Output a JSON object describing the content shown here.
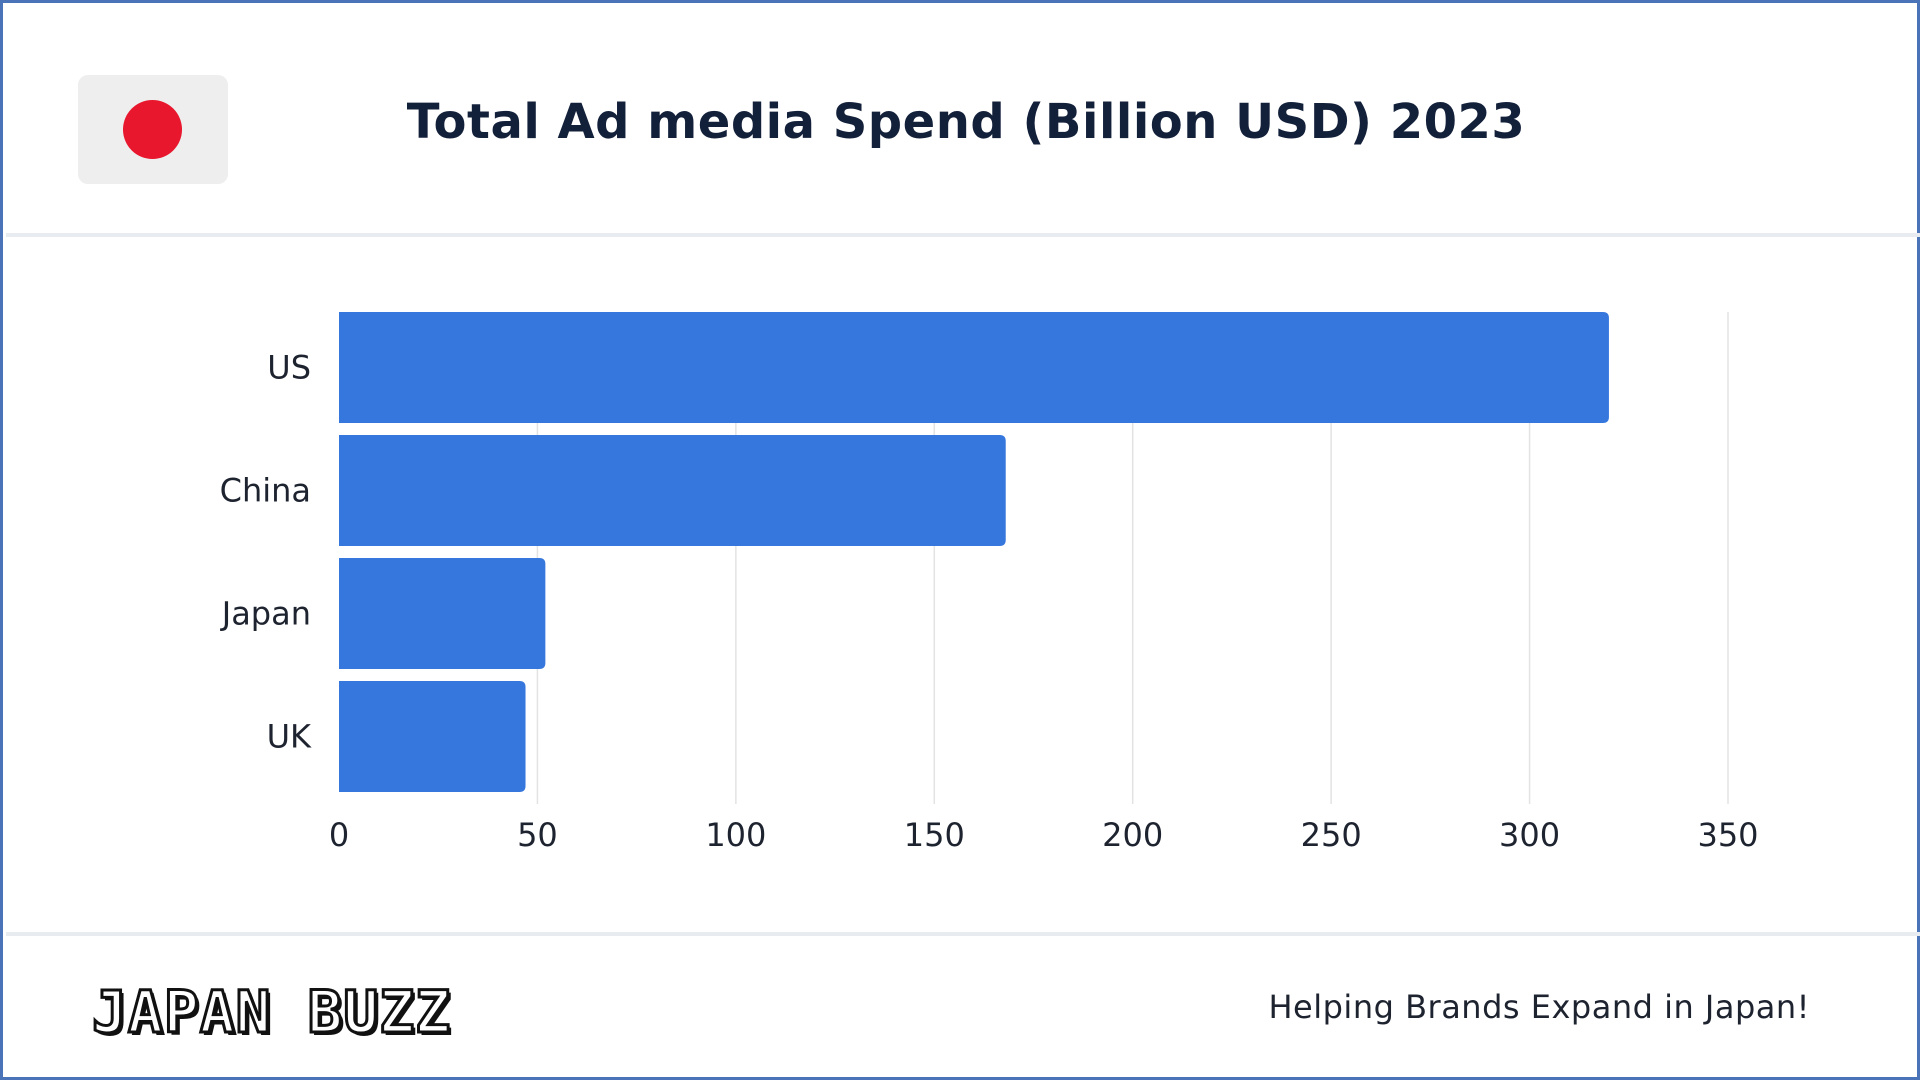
{
  "header": {
    "flag_icon": "japan-flag-icon",
    "flag_color": "#e8172d",
    "title": "Total Ad media Spend (Billion USD) 2023"
  },
  "chart_data": {
    "type": "bar",
    "orientation": "horizontal",
    "title": "Total Ad media Spend (Billion USD) 2023",
    "categories": [
      "US",
      "China",
      "Japan",
      "UK"
    ],
    "values": [
      320,
      168,
      52,
      47
    ],
    "xlim": [
      0,
      350
    ],
    "xticks": [
      0,
      50,
      100,
      150,
      200,
      250,
      300,
      350
    ],
    "xlabel": "",
    "ylabel": "",
    "grid": true,
    "bar_color": "#3677dd",
    "grid_color": "#e3e3e3"
  },
  "footer": {
    "brand": "JAPAN BUZZ",
    "tagline": "Helping Brands Expand in Japan!"
  }
}
